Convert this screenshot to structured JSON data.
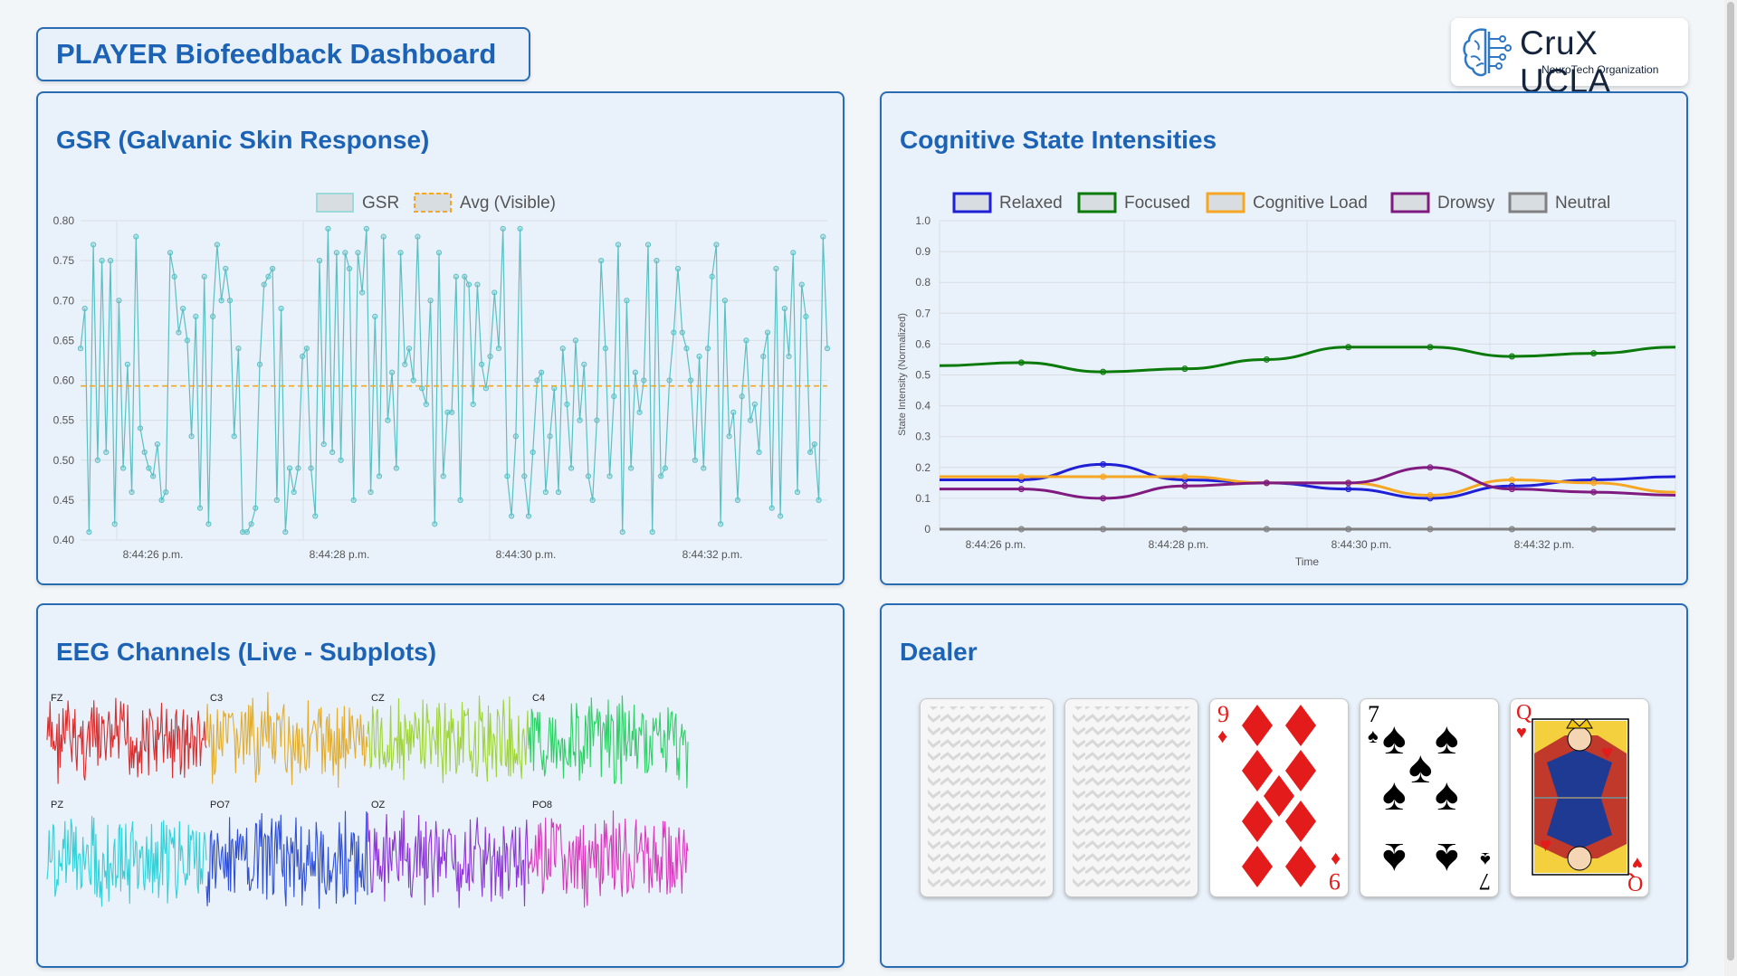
{
  "header": {
    "title": "PLAYER Biofeedback Dashboard"
  },
  "logo": {
    "brand": "CruX UCLA",
    "subtitle": "NeuroTech Organization",
    "icon": "brain-circuit-icon"
  },
  "gsr": {
    "title": "GSR (Galvanic Skin Response)",
    "chart_data": {
      "type": "line",
      "title": "",
      "xlabel": "",
      "ylabel": "",
      "ylim": [
        0.4,
        0.8
      ],
      "yticks": [
        "0.80",
        "0.75",
        "0.70",
        "0.65",
        "0.60",
        "0.55",
        "0.50",
        "0.45",
        "0.40"
      ],
      "xticks": [
        "8:44:26 p.m.",
        "8:44:28 p.m.",
        "8:44:30 p.m.",
        "8:44:32 p.m."
      ],
      "legend": [
        "GSR",
        "Avg (Visible)"
      ],
      "legend_position": "top",
      "grid": true,
      "avg": 0.593,
      "series": [
        {
          "name": "GSR",
          "color": "#5bc0c4",
          "values": [
            0.64,
            0.69,
            0.41,
            0.77,
            0.5,
            0.75,
            0.51,
            0.75,
            0.42,
            0.7,
            0.49,
            0.62,
            0.46,
            0.78,
            0.54,
            0.51,
            0.49,
            0.48,
            0.52,
            0.45,
            0.46,
            0.76,
            0.73,
            0.66,
            0.69,
            0.65,
            0.53,
            0.68,
            0.44,
            0.73,
            0.42,
            0.68,
            0.77,
            0.7,
            0.74,
            0.7,
            0.53,
            0.64,
            0.41,
            0.41,
            0.42,
            0.44,
            0.62,
            0.72,
            0.73,
            0.74,
            0.45,
            0.69,
            0.41,
            0.49,
            0.46,
            0.49,
            0.63,
            0.64,
            0.49,
            0.43,
            0.75,
            0.52,
            0.79,
            0.51,
            0.76,
            0.5,
            0.76,
            0.74,
            0.45,
            0.76,
            0.71,
            0.79,
            0.46,
            0.68,
            0.48,
            0.78,
            0.55,
            0.61,
            0.49,
            0.76,
            0.62,
            0.64,
            0.6,
            0.78,
            0.59,
            0.57,
            0.7,
            0.42,
            0.76,
            0.48,
            0.56,
            0.56,
            0.73,
            0.45,
            0.73,
            0.72,
            0.57,
            0.72,
            0.62,
            0.59,
            0.63,
            0.71,
            0.64,
            0.79,
            0.48,
            0.43,
            0.53,
            0.79,
            0.48,
            0.43,
            0.51,
            0.6,
            0.61,
            0.46,
            0.53,
            0.59,
            0.46,
            0.64,
            0.57,
            0.49,
            0.65,
            0.55,
            0.62,
            0.48,
            0.45,
            0.55,
            0.75,
            0.64,
            0.48,
            0.58,
            0.77,
            0.41,
            0.7,
            0.49,
            0.61,
            0.56,
            0.6,
            0.77,
            0.41,
            0.75,
            0.48,
            0.49,
            0.6,
            0.66,
            0.74,
            0.66,
            0.64,
            0.6,
            0.5,
            0.63,
            0.49,
            0.64,
            0.73,
            0.77,
            0.42,
            0.7,
            0.53,
            0.56,
            0.45,
            0.58,
            0.65,
            0.55,
            0.57,
            0.51,
            0.63,
            0.66,
            0.44,
            0.74,
            0.43,
            0.69,
            0.63,
            0.76,
            0.46,
            0.72,
            0.68,
            0.51,
            0.52,
            0.45,
            0.78,
            0.64
          ]
        }
      ]
    }
  },
  "cognitive": {
    "title": "Cognitive State Intensities",
    "chart_data": {
      "type": "line",
      "title": "",
      "xlabel": "Time",
      "ylabel": "State Intensity (Normalized)",
      "ylim": [
        0,
        1.0
      ],
      "yticks": [
        "1.0",
        "0.9",
        "0.8",
        "0.7",
        "0.6",
        "0.5",
        "0.4",
        "0.3",
        "0.2",
        "0.1",
        "0"
      ],
      "xticks": [
        "8:44:26 p.m.",
        "8:44:28 p.m.",
        "8:44:30 p.m.",
        "8:44:32 p.m."
      ],
      "legend_position": "top",
      "grid": true,
      "series": [
        {
          "name": "Relaxed",
          "color": "#1f1fd6",
          "values": [
            0.16,
            0.16,
            0.21,
            0.16,
            0.15,
            0.13,
            0.1,
            0.14,
            0.16,
            0.17
          ]
        },
        {
          "name": "Focused",
          "color": "#0a7a0a",
          "values": [
            0.53,
            0.54,
            0.51,
            0.52,
            0.55,
            0.59,
            0.59,
            0.56,
            0.57,
            0.59
          ]
        },
        {
          "name": "Cognitive Load",
          "color": "#f5a623",
          "values": [
            0.17,
            0.17,
            0.17,
            0.17,
            0.15,
            0.15,
            0.11,
            0.16,
            0.15,
            0.12
          ]
        },
        {
          "name": "Drowsy",
          "color": "#7f1a80",
          "values": [
            0.13,
            0.13,
            0.1,
            0.14,
            0.15,
            0.15,
            0.2,
            0.13,
            0.12,
            0.11
          ]
        },
        {
          "name": "Neutral",
          "color": "#808080",
          "values": [
            0.0,
            0.0,
            0.0,
            0.0,
            0.0,
            0.0,
            0.0,
            0.0,
            0.0,
            0.0
          ]
        }
      ]
    }
  },
  "eeg": {
    "title": "EEG Channels (Live - Subplots)",
    "chart_data": {
      "type": "line",
      "channels": [
        {
          "name": "FZ",
          "color": "#d62f2f"
        },
        {
          "name": "C3",
          "color": "#e3ad2b"
        },
        {
          "name": "CZ",
          "color": "#9fd43a"
        },
        {
          "name": "C4",
          "color": "#2fd067"
        },
        {
          "name": "PZ",
          "color": "#35d0d8"
        },
        {
          "name": "PO7",
          "color": "#2f4fd6"
        },
        {
          "name": "OZ",
          "color": "#8f36d8"
        },
        {
          "name": "PO8",
          "color": "#d83bbd"
        }
      ]
    }
  },
  "dealer": {
    "title": "Dealer",
    "cards": [
      {
        "face": "back"
      },
      {
        "face": "back"
      },
      {
        "rank": "9",
        "suit": "♦",
        "color": "#e31b1b"
      },
      {
        "rank": "7",
        "suit": "♠",
        "color": "#000000"
      },
      {
        "rank": "Q",
        "suit": "♥",
        "color": "#e31b1b"
      }
    ]
  }
}
